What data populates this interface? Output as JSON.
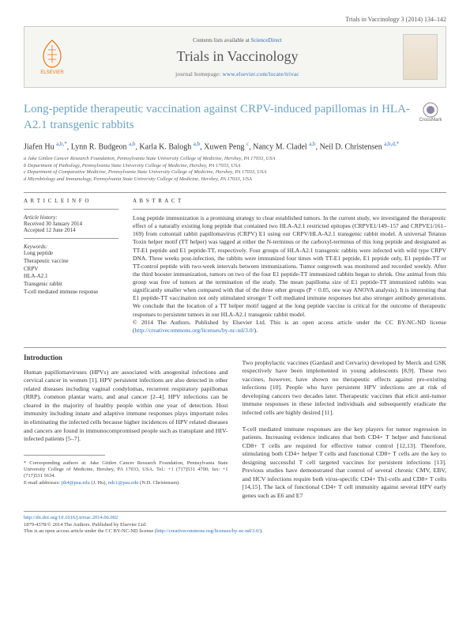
{
  "header": {
    "citation": "Trials in Vaccinology 3 (2014) 134–142"
  },
  "masthead": {
    "publisher": "ELSEVIER",
    "contents_prefix": "Contents lists available at ",
    "contents_link": "ScienceDirect",
    "journal": "Trials in Vaccinology",
    "homepage_label": "journal homepage: ",
    "homepage_url": "www.elsevier.com/locate/trivac"
  },
  "article": {
    "title": "Long-peptide therapeutic vaccination against CRPV-induced papillomas in HLA-A2.1 transgenic rabbits",
    "crossmark": "CrossMark"
  },
  "authors_html": "Jiafen Hu <sup>a,b,*</sup>, Lynn R. Budgeon <sup>a,b</sup>, Karla K. Balogh <sup>a,b</sup>, Xuwen Peng <sup>c</sup>, Nancy M. Cladel <sup>a,b</sup>, Neil D. Christensen <sup>a,b,d,*</sup>",
  "affiliations": [
    "a Jake Gittlen Cancer Research Foundation, Pennsylvania State University College of Medicine, Hershey, PA 17033, USA",
    "b Department of Pathology, Pennsylvania State University College of Medicine, Hershey, PA 17033, USA",
    "c Department of Comparative Medicine, Pennsylvania State University College of Medicine, Hershey, PA 17033, USA",
    "d Microbiology and Immunology, Pennsylvania State University College of Medicine, Hershey, PA 17033, USA"
  ],
  "article_info": {
    "heading": "A R T I C L E   I N F O",
    "history_label": "Article history:",
    "received": "Received 30 January 2014",
    "accepted": "Accepted 12 June 2014",
    "keywords_label": "Keywords:",
    "keywords": [
      "Long peptide",
      "Therapeutic vaccine",
      "CRPV",
      "HLA-A2.1",
      "Transgenic rabbit",
      "T-cell mediated immune response"
    ]
  },
  "abstract": {
    "heading": "A B S T R A C T",
    "text": "Long peptide immunization is a promising strategy to clear established tumors. In the current study, we investigated the therapeutic effect of a naturally existing long peptide that contained two HLA-A2.1 restricted epitopes (CRPVE1/149–157 and CRPVE1/161–169) from cottontail rabbit papillomavirus (CRPV) E1 using our CRPV/HLA-A2.1 transgenic rabbit model. A universal Tetanus Toxin helper motif (TT helper) was tagged at either the N-terminus or the carboxyl-terminus of this long peptide and designated as TT-E1 peptide and E1 peptide-TT, respectively. Four groups of HLA-A2.1 transgenic rabbits were infected with wild type CRPV DNA. Three weeks post-infection, the rabbits were immunized four times with TT-E1 peptide, E1 peptide only, E1 peptide-TT or TT-control peptide with two-week intervals between immunizations. Tumor outgrowth was monitored and recorded weekly. After the third booster immunization, tumors on two of the four E1 peptide-TT immunized rabbits began to shrink. One animal from this group was free of tumors at the termination of the study. The mean papilloma size of E1 peptide-TT immunized rabbits was significantly smaller when compared with that of the three other groups (P < 0.05, one way ANOVA analysis). It is interesting that E1 peptide-TT vaccination not only stimulated stronger T cell mediated immune responses but also stronger antibody generations. We conclude that the location of a TT helper motif tagged at the long peptide vaccine is critical for the outcome of therapeutic responses to persistent tumors in our HLA-A2.1 transgenic rabbit model.",
    "copyright": "© 2014 The Authors. Published by Elsevier Ltd. This is an open access article under the CC BY-NC-ND license (",
    "license_url": "http://creativecommons.org/licenses/by-nc-nd/3.0/",
    "copyright_end": ")."
  },
  "body": {
    "intro_heading": "Introduction",
    "col1": "Human papillomaviruses (HPVs) are associated with anogenital infections and cervical cancer in women [1]. HPV persistent infections are also detected in other related diseases including vaginal condylomas, recurrent respiratory papillomas (RRP), common plantar warts, and anal cancer [2–4]. HPV infections can be cleared in the majority of healthy people within one year of detection. Host immunity including innate and adaptive immune responses plays important roles in eliminating the infected cells because higher incidences of HPV related diseases and cancers are found in immunocompromised people such as transplant and HIV-infected patients [5–7].",
    "col2": "Two prophylactic vaccines (Gardasil and Cervarix) developed by Merck and GSK respectively have been implemented in young adolescents [8,9]. These two vaccines, however, have shown no therapeutic effects against pre-existing infections [10]. People who have persistent HPV infections are at risk of developing cancers two decades later. Therapeutic vaccines that elicit anti-tumor immune responses in these infected individuals and subsequently eradicate the infected cells are highly desired [11].\n\nT-cell mediated immune responses are the key players for tumor regression in patients. Increasing evidence indicates that both CD4+ T helper and functional CD8+ T cells are required for effective tumor control [12,13]. Therefore, stimulating both CD4+ helper T cells and functional CD8+ T cells are the key to designing successful T cell targeted vaccines for persistent infections [13]. Previous studies have demonstrated that control of several chronic CMV, EBV, and HCV infections require both virus-specific CD4+ Th1-cells and CD8+ T cells [14,15]. The lack of functional CD4+ T cell immunity against several HPV early genes such as E6 and E7"
  },
  "footnotes": {
    "corresponding": "* Corresponding authors at: Jake Gittlen Cancer Research Foundation, Pennsylvania State University College of Medicine, Hershey, PA 17033, USA. Tel.: +1 (717)531 4700; fax: +1 (717)531 5634.",
    "emails_label": "E-mail addresses: ",
    "email1": "jth4@psu.edu",
    "email1_who": " (J. Hu), ",
    "email2": "ndc1@psu.edu",
    "email2_who": " (N.D. Christensen)."
  },
  "bottom": {
    "doi": "http://dx.doi.org/10.1016/j.trivac.2014.06.002",
    "issn": "1879-4378/© 2014 The Authors. Published by Elsevier Ltd.",
    "openaccess": "This is an open access article under the CC BY-NC-ND license (",
    "license_url": "http://creativecommons.org/licenses/by-nc-nd/3.0/",
    "end": ")."
  }
}
